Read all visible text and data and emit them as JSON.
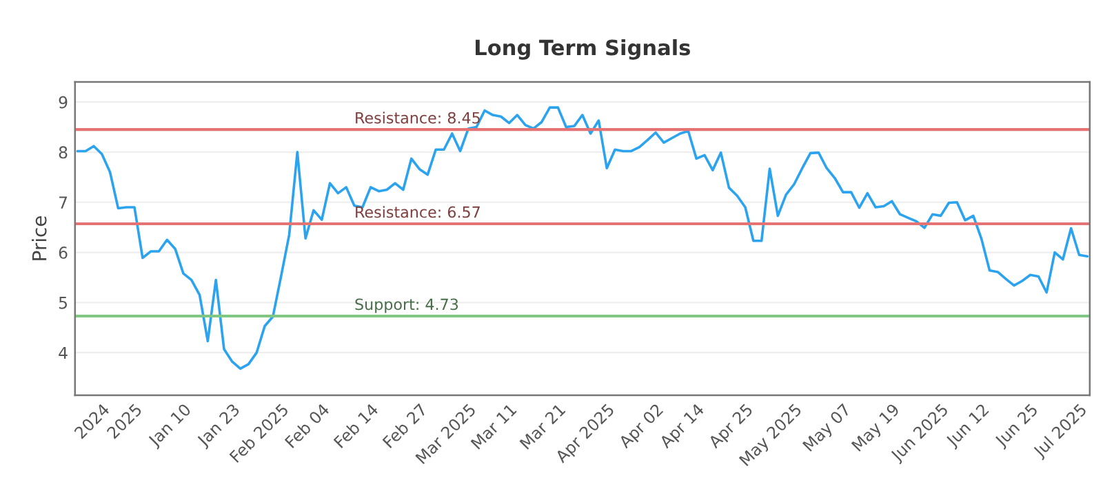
{
  "chart_data": {
    "type": "line",
    "title": "Long Term Signals",
    "ylabel": "Price",
    "categories": [
      null,
      null,
      null,
      "2024",
      null,
      null,
      null,
      "2025",
      null,
      null,
      null,
      null,
      null,
      "Jan 10",
      null,
      null,
      null,
      null,
      null,
      "Jan 23",
      null,
      null,
      null,
      null,
      null,
      "Feb 2025",
      null,
      null,
      null,
      null,
      "Feb 04",
      null,
      null,
      null,
      null,
      null,
      "Feb 14",
      null,
      null,
      null,
      null,
      null,
      "Feb 27",
      null,
      null,
      null,
      null,
      null,
      "Mar 2025",
      null,
      null,
      null,
      null,
      "Mar 11",
      null,
      null,
      null,
      null,
      null,
      "Mar 21",
      null,
      null,
      null,
      null,
      null,
      "Apr 2025",
      null,
      null,
      null,
      null,
      null,
      "Apr 02",
      null,
      null,
      null,
      null,
      "Apr 14",
      null,
      null,
      null,
      null,
      null,
      "Apr 25",
      null,
      null,
      null,
      null,
      null,
      "May 2025",
      null,
      null,
      null,
      null,
      null,
      "May 07",
      null,
      null,
      null,
      null,
      null,
      "May 19",
      null,
      null,
      null,
      null,
      null,
      "Jun 2025",
      null,
      null,
      null,
      null,
      "Jun 12",
      null,
      null,
      null,
      null,
      null,
      "Jun 25",
      null,
      null,
      null,
      null,
      null,
      "Jul 2025",
      null
    ],
    "series": [
      {
        "color": "#2ba3ee",
        "values": [
          8.02,
          8.02,
          8.12,
          7.96,
          7.6,
          6.88,
          6.9,
          6.9,
          5.89,
          6.02,
          6.02,
          6.25,
          6.07,
          5.58,
          5.45,
          5.15,
          4.23,
          5.45,
          4.07,
          3.82,
          3.68,
          3.77,
          4.0,
          4.53,
          4.72,
          5.52,
          6.35,
          8.0,
          6.28,
          6.84,
          6.65,
          7.38,
          7.18,
          7.3,
          6.93,
          6.9,
          7.3,
          7.22,
          7.25,
          7.38,
          7.25,
          7.87,
          7.66,
          7.55,
          8.05,
          8.05,
          8.37,
          8.02,
          8.47,
          8.5,
          8.83,
          8.74,
          8.71,
          8.58,
          8.74,
          8.54,
          8.47,
          8.6,
          8.89,
          8.89,
          8.5,
          8.52,
          8.74,
          8.37,
          8.63,
          7.68,
          8.05,
          8.02,
          8.02,
          8.1,
          8.24,
          8.39,
          8.19,
          8.28,
          8.37,
          8.42,
          7.87,
          7.94,
          7.64,
          7.99,
          7.29,
          7.13,
          6.9,
          6.23,
          6.23,
          7.67,
          6.73,
          7.15,
          7.36,
          7.68,
          7.98,
          7.99,
          7.68,
          7.48,
          7.2,
          7.2,
          6.89,
          7.18,
          6.9,
          6.92,
          7.02,
          6.76,
          6.69,
          6.62,
          6.49,
          6.76,
          6.73,
          6.99,
          7.0,
          6.64,
          6.73,
          6.27,
          5.64,
          5.61,
          5.47,
          5.34,
          5.43,
          5.55,
          5.52,
          5.2,
          6.0,
          5.86,
          6.48,
          5.95,
          5.92
        ]
      }
    ],
    "ylim": [
      3.15,
      9.4
    ],
    "yticks": [
      4,
      5,
      6,
      7,
      8,
      9
    ],
    "grid": "y",
    "legend": false,
    "ref_lines": [
      {
        "axis": "y",
        "value": 8.45,
        "label": "Resistance: 8.45",
        "color": "#e57373"
      },
      {
        "axis": "y",
        "value": 6.57,
        "label": "Resistance: 6.57",
        "color": "#e57373"
      },
      {
        "axis": "y",
        "value": 4.73,
        "label": "Support: 4.73",
        "color": "#81c784"
      }
    ]
  }
}
